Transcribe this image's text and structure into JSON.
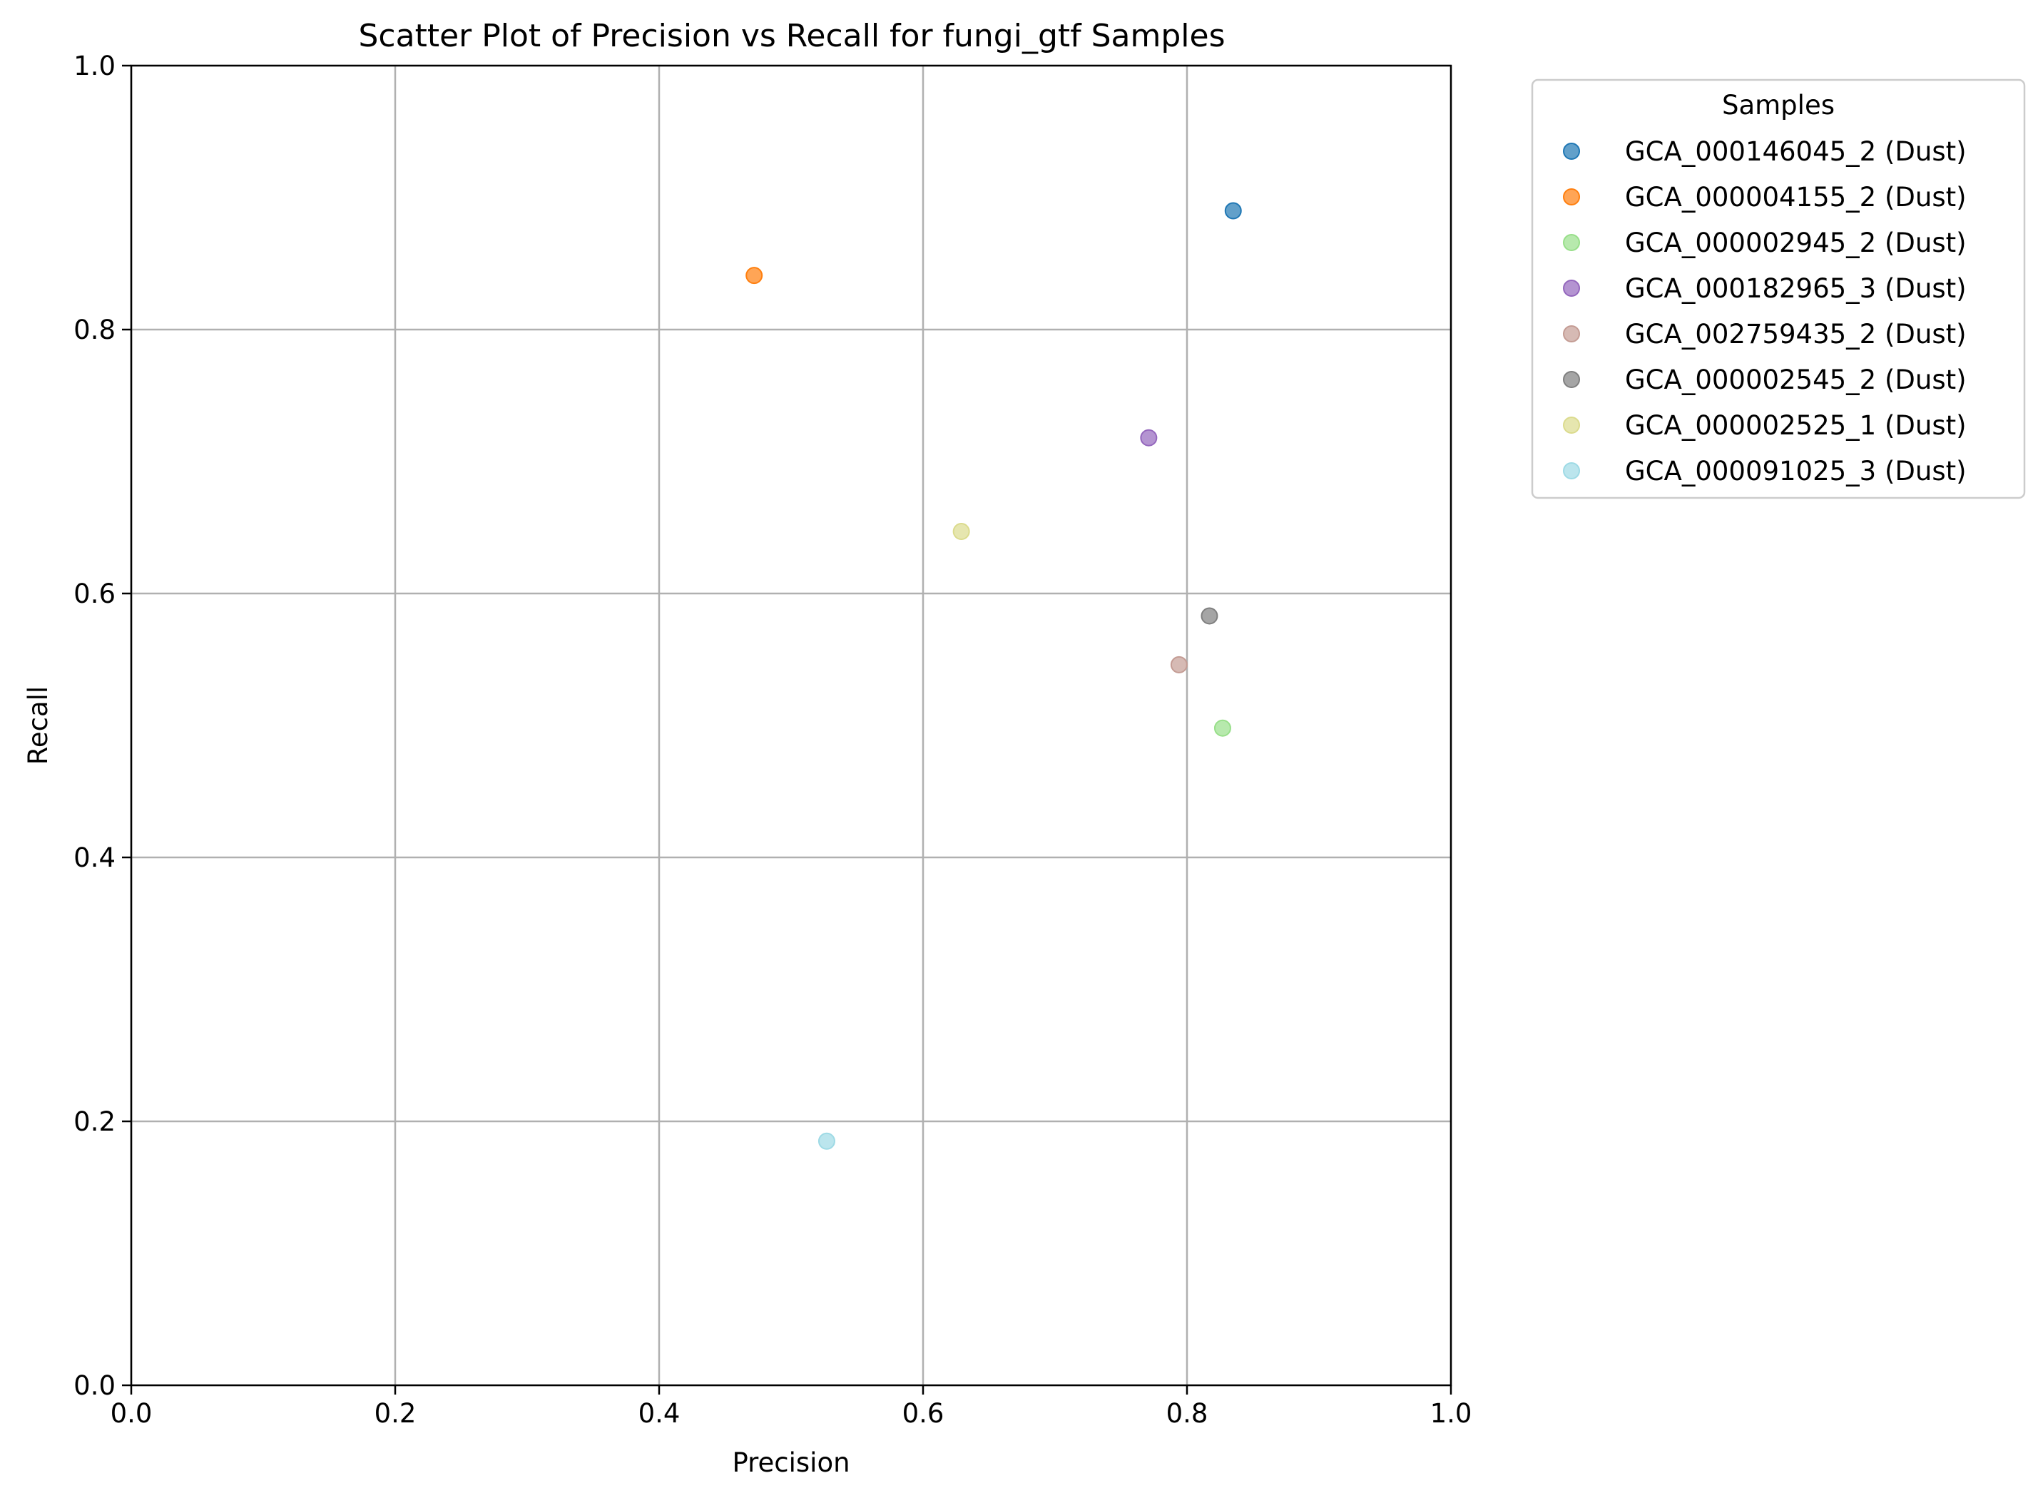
{
  "chart_data": {
    "type": "scatter",
    "title": "Scatter Plot of Precision vs Recall for fungi_gtf Samples",
    "xlabel": "Precision",
    "ylabel": "Recall",
    "xlim": [
      0.0,
      1.0
    ],
    "ylim": [
      0.0,
      1.0
    ],
    "xticks": [
      "0.0",
      "0.2",
      "0.4",
      "0.6",
      "0.8",
      "1.0"
    ],
    "yticks": [
      "0.0",
      "0.2",
      "0.4",
      "0.6",
      "0.8",
      "1.0"
    ],
    "grid": true,
    "legend": {
      "title": "Samples",
      "placement": "outside-right-top"
    },
    "series": [
      {
        "name": "GCA_000146045_2 (Dust)",
        "x": 0.835,
        "y": 0.89,
        "color": "#1f77b4"
      },
      {
        "name": "GCA_000004155_2 (Dust)",
        "x": 0.472,
        "y": 0.841,
        "color": "#ff7f0e"
      },
      {
        "name": "GCA_000002945_2 (Dust)",
        "x": 0.827,
        "y": 0.498,
        "color": "#98df8a"
      },
      {
        "name": "GCA_000182965_3 (Dust)",
        "x": 0.771,
        "y": 0.718,
        "color": "#9467bd"
      },
      {
        "name": "GCA_002759435_2 (Dust)",
        "x": 0.794,
        "y": 0.546,
        "color": "#c49c94"
      },
      {
        "name": "GCA_000002545_2 (Dust)",
        "x": 0.817,
        "y": 0.583,
        "color": "#7f7f7f"
      },
      {
        "name": "GCA_000002525_1 (Dust)",
        "x": 0.629,
        "y": 0.647,
        "color": "#dbdb8d"
      },
      {
        "name": "GCA_000091025_3 (Dust)",
        "x": 0.527,
        "y": 0.185,
        "color": "#9edae5"
      }
    ]
  }
}
